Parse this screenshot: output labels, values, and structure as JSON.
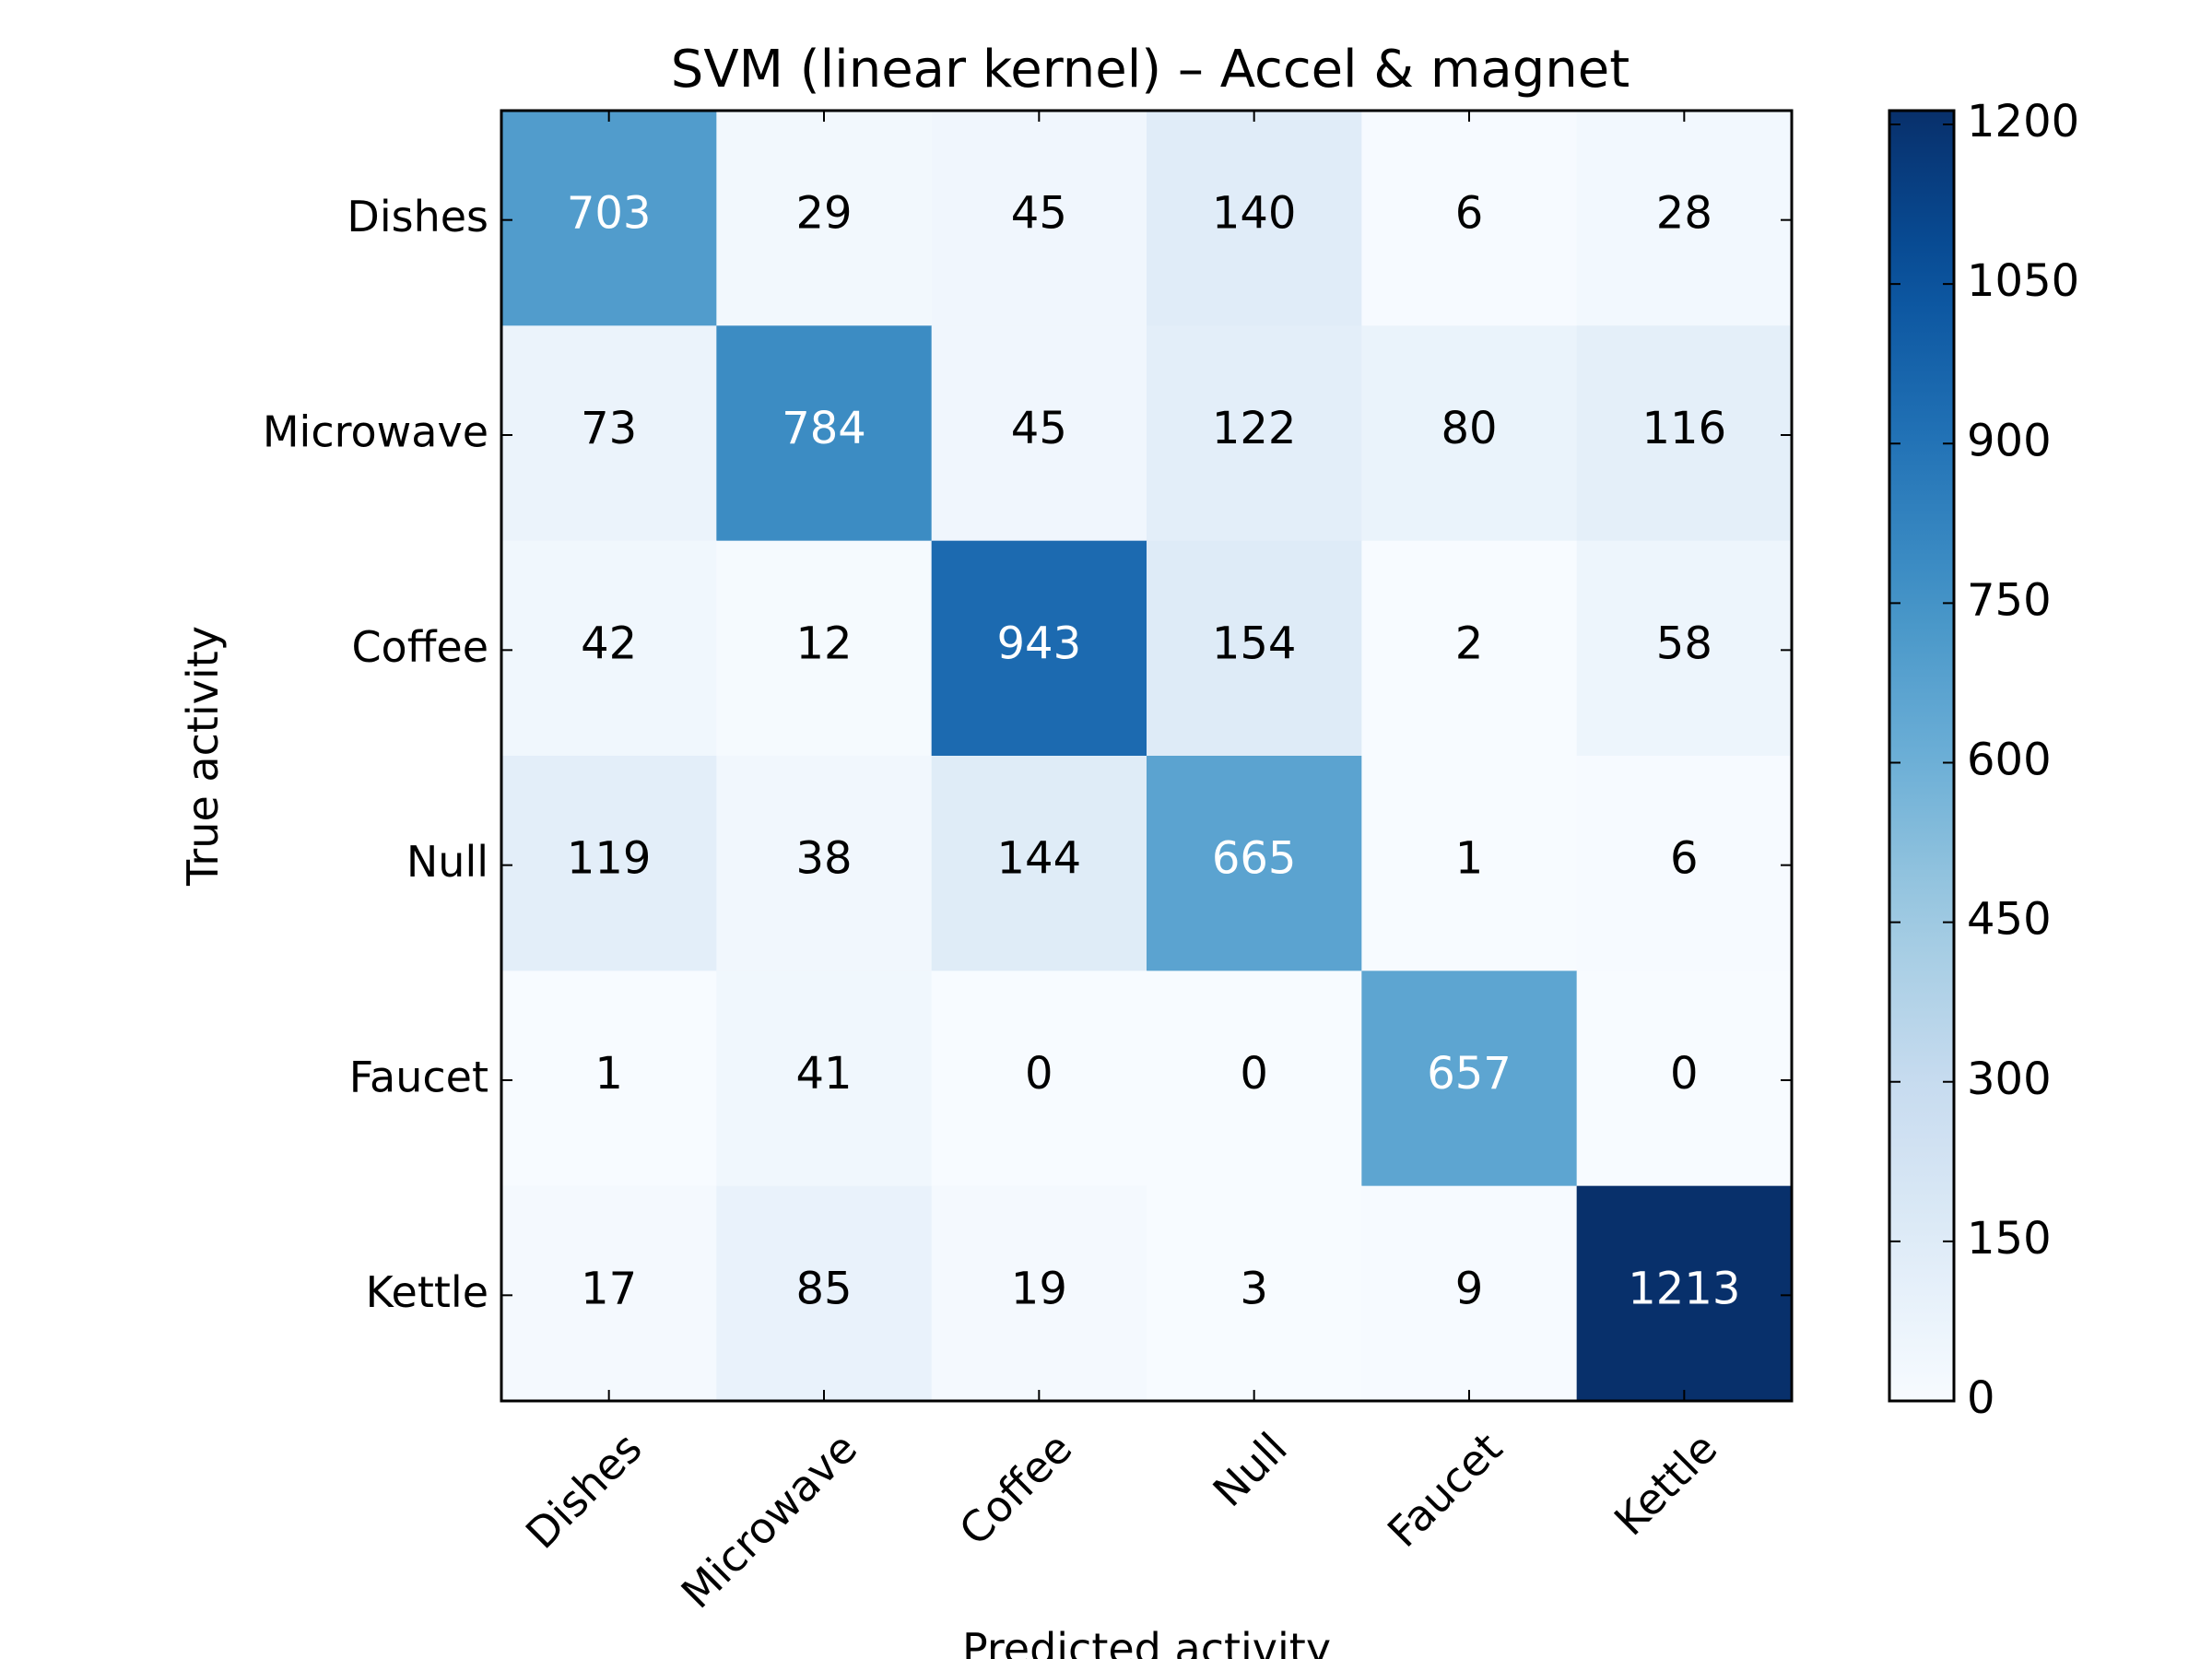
{
  "chart_data": {
    "type": "heatmap",
    "title": "SVM (linear kernel) – Accel & magnet",
    "xlabel": "Predicted activity",
    "ylabel": "True activity",
    "x_categories": [
      "Dishes",
      "Microwave",
      "Coffee",
      "Null",
      "Faucet",
      "Kettle"
    ],
    "y_categories": [
      "Dishes",
      "Microwave",
      "Coffee",
      "Null",
      "Faucet",
      "Kettle"
    ],
    "values": [
      [
        703,
        29,
        45,
        140,
        6,
        28
      ],
      [
        73,
        784,
        45,
        122,
        80,
        116
      ],
      [
        42,
        12,
        943,
        154,
        2,
        58
      ],
      [
        119,
        38,
        144,
        665,
        1,
        6
      ],
      [
        1,
        41,
        0,
        0,
        657,
        0
      ],
      [
        17,
        85,
        19,
        3,
        9,
        1213
      ]
    ],
    "colormap": "Blues",
    "colorbar": {
      "min": 0,
      "max": 1213,
      "ticks": [
        0,
        150,
        300,
        450,
        600,
        750,
        900,
        1050,
        1200
      ]
    },
    "grid": false,
    "text_color_light": "#ffffff",
    "text_color_dark": "#000000"
  }
}
